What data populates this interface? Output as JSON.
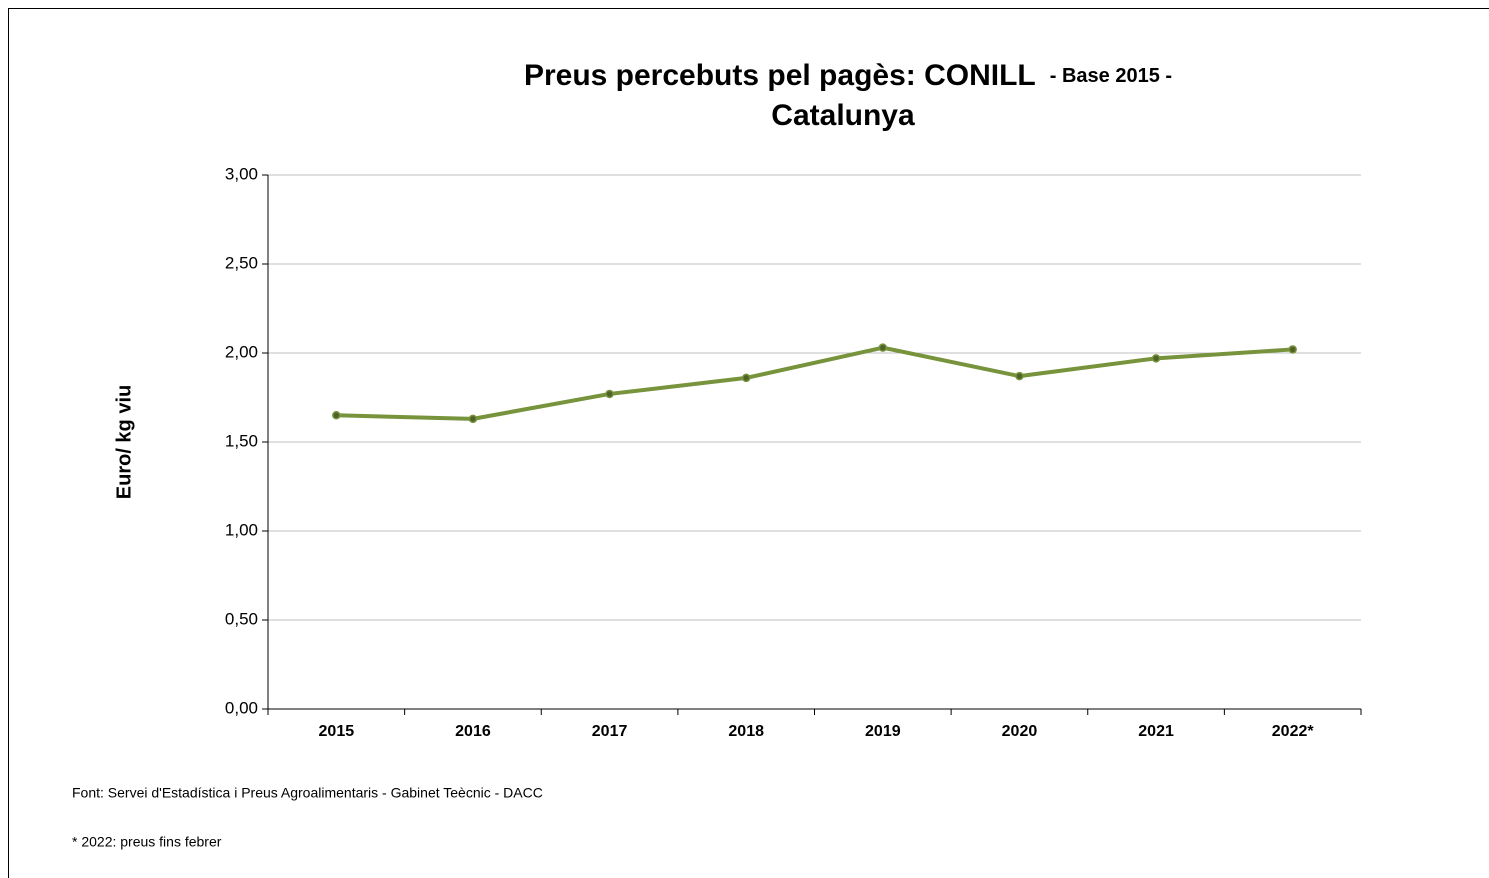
{
  "chart_data": {
    "type": "line",
    "title": "Preus percebuts pel pagès: CONILL",
    "subtitle": "- Base 2015 -",
    "title_line2": "Catalunya",
    "y_label": "Euro/ kg viu",
    "categories": [
      "2015",
      "2016",
      "2017",
      "2018",
      "2019",
      "2020",
      "2021",
      "2022*"
    ],
    "series": [
      {
        "name": "CONILL",
        "color": "#77933c",
        "values": [
          1.65,
          1.63,
          1.77,
          1.86,
          2.03,
          1.87,
          1.97,
          2.02
        ]
      }
    ],
    "ylim": [
      0,
      3
    ],
    "yticks": [
      {
        "value": 0,
        "label": "0,00"
      },
      {
        "value": 0.5,
        "label": "0,50"
      },
      {
        "value": 1,
        "label": "1,00"
      },
      {
        "value": 1.5,
        "label": "1,50"
      },
      {
        "value": 2,
        "label": "2,00"
      },
      {
        "value": 2.5,
        "label": "2,50"
      },
      {
        "value": 3,
        "label": "3,00"
      }
    ],
    "grid": true,
    "notes": [
      "Font: Servei d'Estadística i Preus Agroalimentaris - Gabinet Teècnic - DACC",
      "* 2022: preus fins febrer"
    ]
  }
}
